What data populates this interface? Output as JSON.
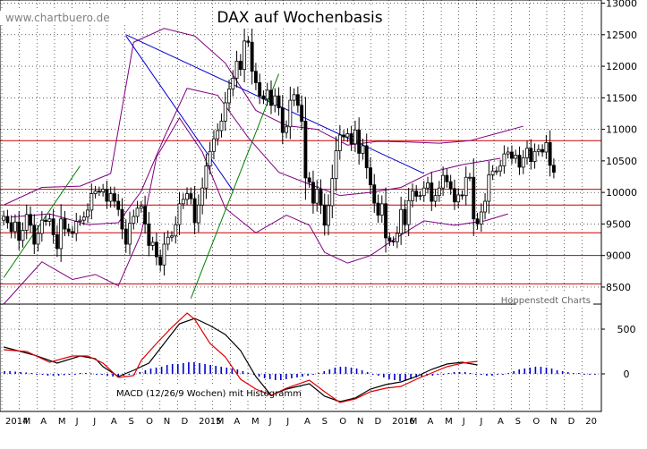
{
  "colors": {
    "background": "#ffffff",
    "grid": "#000000",
    "candle_up": "#ffffff",
    "candle_down": "#000000",
    "bollinger": "#800080",
    "resistance_lines": "#cc0000",
    "trendline_down": "#0000cc",
    "trendline_up": "#008000",
    "macd_line": "#000000",
    "signal_line": "#dd0000",
    "histogram": "#0000cc"
  },
  "chart_data": {
    "type": "candlestick",
    "title": "DAX auf Wochenbasis",
    "watermark": "www.chartbuero.de",
    "source_note": "Hoppenstedt Charts",
    "price_axis": {
      "ticks": [
        8500,
        9000,
        9500,
        10000,
        10500,
        11000,
        11500,
        12000,
        12500,
        13000
      ],
      "tick_labels": [
        "8500",
        "9000",
        "9500",
        "10000",
        "10500",
        "11000",
        "11500",
        "12000",
        "12500",
        "13000"
      ],
      "ylim": [
        8230,
        13050
      ],
      "side": "right"
    },
    "time_axis": {
      "labels": [
        "2014",
        "M",
        "A",
        "M",
        "J",
        "J",
        "A",
        "S",
        "O",
        "N",
        "D",
        "2015",
        "M",
        "A",
        "M",
        "J",
        "J",
        "A",
        "S",
        "O",
        "N",
        "D",
        "2016",
        "M",
        "A",
        "M",
        "J",
        "J",
        "A",
        "S",
        "O",
        "N",
        "D",
        "20"
      ],
      "weeks": 156
    },
    "weekly_closes": [
      9620,
      9520,
      9380,
      9530,
      9240,
      9400,
      9650,
      9480,
      9180,
      9350,
      9560,
      9540,
      9580,
      9330,
      9110,
      9580,
      9420,
      9380,
      9350,
      9540,
      9560,
      9610,
      9720,
      9980,
      10020,
      10010,
      10050,
      9860,
      9980,
      9860,
      9730,
      9420,
      9180,
      9510,
      9620,
      9750,
      9780,
      9500,
      9160,
      9210,
      8980,
      8850,
      9180,
      9290,
      9310,
      9490,
      9820,
      9890,
      9980,
      9900,
      9520,
      9800,
      10070,
      10420,
      10650,
      10850,
      10980,
      11130,
      11420,
      11640,
      11810,
      12080,
      11950,
      12400,
      12380,
      11920,
      11740,
      11530,
      11480,
      11620,
      11380,
      11530,
      11340,
      10950,
      11040,
      11460,
      11550,
      11380,
      11130,
      10230,
      10160,
      9830,
      10050,
      9800,
      9480,
      9790,
      10220,
      10660,
      10910,
      10880,
      10930,
      10770,
      10990,
      10620,
      10740,
      10390,
      10120,
      9830,
      9640,
      9820,
      9280,
      9230,
      9220,
      9350,
      9730,
      9490,
      9870,
      10020,
      9940,
      9950,
      10070,
      10150,
      9860,
      9950,
      10070,
      10270,
      10170,
      10060,
      9850,
      9960,
      9950,
      10240,
      10240,
      9580,
      9500,
      9690,
      9860,
      10280,
      10340,
      10340,
      10420,
      10610,
      10640,
      10540,
      10590,
      10400,
      10550,
      10700,
      10490,
      10650,
      10680,
      10640,
      10790,
      10430,
      10320
    ],
    "support_resistance_levels": [
      10820,
      10050,
      9800,
      9360,
      9000,
      8550
    ],
    "trendlines": [
      {
        "name": "down-trend-1",
        "from": [
          32,
          12480
        ],
        "to": [
          60,
          10030
        ]
      },
      {
        "name": "down-trend-2",
        "from": [
          32,
          12500
        ],
        "to": [
          110,
          10300
        ]
      },
      {
        "name": "up-trend-1",
        "from": [
          0,
          8650
        ],
        "to": [
          20,
          10420
        ]
      },
      {
        "name": "up-trend-2",
        "from": [
          49,
          8320
        ],
        "to": [
          72,
          11880
        ]
      }
    ],
    "bollinger_bands": {
      "upper": [
        [
          0,
          9800
        ],
        [
          10,
          10080
        ],
        [
          20,
          10100
        ],
        [
          28,
          10300
        ],
        [
          34,
          12380
        ],
        [
          42,
          12600
        ],
        [
          50,
          12480
        ],
        [
          58,
          12050
        ],
        [
          66,
          11300
        ],
        [
          74,
          11060
        ],
        [
          82,
          11000
        ],
        [
          90,
          10750
        ],
        [
          98,
          10810
        ],
        [
          106,
          10800
        ],
        [
          114,
          10780
        ],
        [
          122,
          10820
        ],
        [
          130,
          10950
        ],
        [
          136,
          11050
        ]
      ],
      "lower": [
        [
          0,
          8230
        ],
        [
          10,
          8900
        ],
        [
          18,
          8620
        ],
        [
          24,
          8700
        ],
        [
          30,
          8520
        ],
        [
          36,
          9350
        ],
        [
          40,
          10560
        ],
        [
          46,
          11180
        ],
        [
          52,
          10640
        ],
        [
          58,
          9750
        ],
        [
          66,
          9360
        ],
        [
          74,
          9640
        ],
        [
          80,
          9480
        ],
        [
          84,
          9050
        ],
        [
          90,
          8880
        ],
        [
          96,
          9000
        ],
        [
          102,
          9250
        ],
        [
          110,
          9550
        ],
        [
          118,
          9480
        ],
        [
          126,
          9550
        ],
        [
          132,
          9660
        ]
      ],
      "middle": [
        [
          2,
          9610
        ],
        [
          12,
          9660
        ],
        [
          22,
          9490
        ],
        [
          30,
          9520
        ],
        [
          36,
          10020
        ],
        [
          42,
          10870
        ],
        [
          48,
          11650
        ],
        [
          56,
          11540
        ],
        [
          64,
          10870
        ],
        [
          72,
          10320
        ],
        [
          80,
          10130
        ],
        [
          88,
          9950
        ],
        [
          96,
          10000
        ],
        [
          104,
          10080
        ],
        [
          112,
          10320
        ],
        [
          120,
          10440
        ],
        [
          130,
          10540
        ]
      ]
    },
    "indicator": {
      "label": "MACD (12/26/9 Wochen) mit Histogramm",
      "ticks": [
        0,
        500
      ],
      "tick_labels": [
        "0",
        "500"
      ],
      "ylim": [
        -420,
        780
      ],
      "macd": [
        [
          0,
          300
        ],
        [
          8,
          210
        ],
        [
          14,
          120
        ],
        [
          20,
          200
        ],
        [
          24,
          170
        ],
        [
          26,
          80
        ],
        [
          30,
          -30
        ],
        [
          34,
          40
        ],
        [
          38,
          120
        ],
        [
          42,
          340
        ],
        [
          46,
          560
        ],
        [
          50,
          620
        ],
        [
          54,
          540
        ],
        [
          58,
          440
        ],
        [
          62,
          260
        ],
        [
          66,
          -30
        ],
        [
          70,
          -240
        ],
        [
          74,
          -170
        ],
        [
          80,
          -110
        ],
        [
          84,
          -250
        ],
        [
          88,
          -310
        ],
        [
          92,
          -270
        ],
        [
          96,
          -170
        ],
        [
          100,
          -120
        ],
        [
          104,
          -90
        ],
        [
          108,
          -30
        ],
        [
          112,
          50
        ],
        [
          116,
          110
        ],
        [
          120,
          130
        ],
        [
          124,
          100
        ]
      ],
      "signal": [
        [
          0,
          270
        ],
        [
          6,
          250
        ],
        [
          12,
          130
        ],
        [
          18,
          200
        ],
        [
          22,
          200
        ],
        [
          26,
          120
        ],
        [
          30,
          -40
        ],
        [
          34,
          -20
        ],
        [
          36,
          150
        ],
        [
          40,
          340
        ],
        [
          44,
          520
        ],
        [
          48,
          680
        ],
        [
          50,
          610
        ],
        [
          54,
          340
        ],
        [
          58,
          190
        ],
        [
          62,
          -60
        ],
        [
          66,
          -170
        ],
        [
          70,
          -240
        ],
        [
          74,
          -160
        ],
        [
          80,
          -70
        ],
        [
          84,
          -200
        ],
        [
          88,
          -320
        ],
        [
          92,
          -280
        ],
        [
          96,
          -200
        ],
        [
          100,
          -160
        ],
        [
          104,
          -140
        ],
        [
          108,
          -60
        ],
        [
          112,
          10
        ],
        [
          116,
          80
        ],
        [
          120,
          120
        ],
        [
          124,
          140
        ]
      ],
      "histogram": [
        30,
        30,
        25,
        20,
        15,
        10,
        0,
        -10,
        -20,
        -20,
        -20,
        -15,
        -10,
        0,
        10,
        10,
        5,
        0,
        -10,
        -20,
        -30,
        -30,
        -20,
        -10,
        0,
        20,
        40,
        60,
        70,
        80,
        100,
        110,
        110,
        120,
        130,
        130,
        120,
        110,
        100,
        90,
        80,
        70,
        60,
        50,
        30,
        10,
        -10,
        -30,
        -50,
        -60,
        -70,
        -70,
        -60,
        -50,
        -40,
        -30,
        -20,
        -10,
        10,
        30,
        50,
        70,
        80,
        80,
        70,
        60,
        40,
        20,
        0,
        -20,
        -40,
        -60,
        -70,
        -80,
        -70,
        -60,
        -40,
        -30,
        -20,
        -20,
        -10,
        0,
        10,
        20,
        20,
        20,
        10,
        0,
        -10,
        -20,
        -20,
        -10,
        0,
        10,
        30,
        50,
        60,
        70,
        80,
        80,
        70,
        60,
        40,
        30,
        20,
        10,
        10,
        0,
        -10,
        -10
      ]
    }
  }
}
